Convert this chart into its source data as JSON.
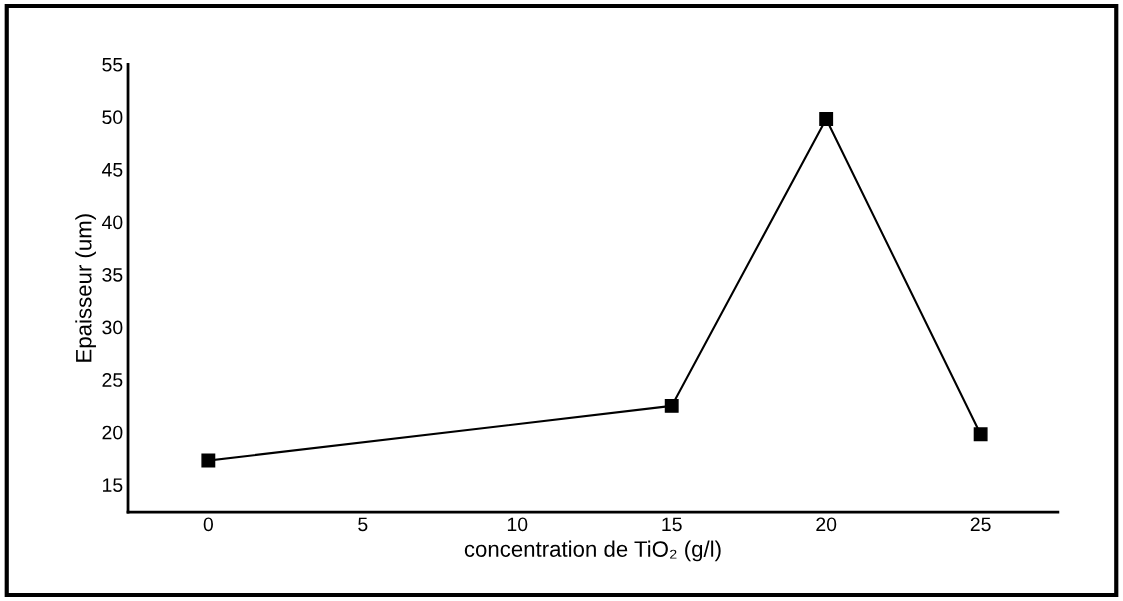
{
  "chart_data": {
    "type": "line",
    "xlabel": "concentration de TiO₂ (g/l)",
    "ylabel": "Epaisseur (um)",
    "x": [
      0,
      15,
      20,
      25
    ],
    "series": [
      {
        "color": "#000000",
        "values": [
          17.3,
          22.5,
          49.8,
          19.8
        ]
      }
    ],
    "xlim": [
      -2.6,
      27.5
    ],
    "xticks": [
      0,
      5,
      10,
      15,
      20,
      25
    ],
    "ylim": [
      12.4,
      55
    ],
    "yticks": [
      15,
      20,
      25,
      30,
      35,
      40,
      45,
      50,
      55
    ],
    "marker": "square",
    "line_style": "solid",
    "grid": false,
    "legend": false
  }
}
